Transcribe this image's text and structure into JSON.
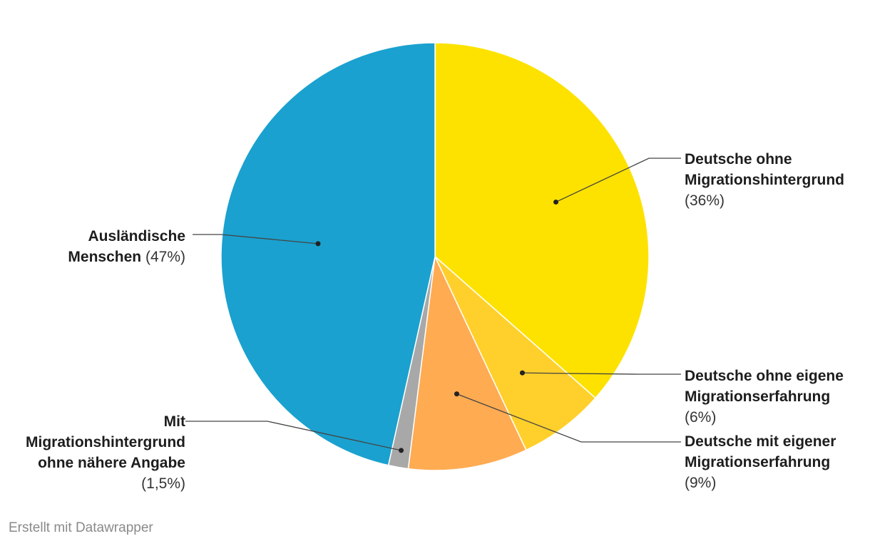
{
  "chart_data": {
    "type": "pie",
    "slices": [
      {
        "label_lines": [
          "Deutsche ohne",
          "Migrationshintergrund"
        ],
        "percent_text": "(36%)",
        "value": 36.5,
        "color": "#fde200"
      },
      {
        "label_lines": [
          "Deutsche ohne eigene",
          "Migrationserfahrung"
        ],
        "percent_text": "(6%)",
        "value": 6.5,
        "color": "#ffd02b"
      },
      {
        "label_lines": [
          "Deutsche mit eigener",
          "Migrationserfahrung"
        ],
        "percent_text": "(9%)",
        "value": 9,
        "color": "#ffab52"
      },
      {
        "label_lines": [
          "Mit",
          "Migrationshintergrund",
          "ohne nähere Angabe"
        ],
        "percent_text": "(1,5%)",
        "value": 1.5,
        "color": "#a8a8a8"
      },
      {
        "label_lines": [
          "Ausländische",
          "Menschen"
        ],
        "percent_text": "(47%)",
        "value": 46.5,
        "color": "#1aa1cf"
      }
    ]
  },
  "footer": "Erstellt mit Datawrapper"
}
